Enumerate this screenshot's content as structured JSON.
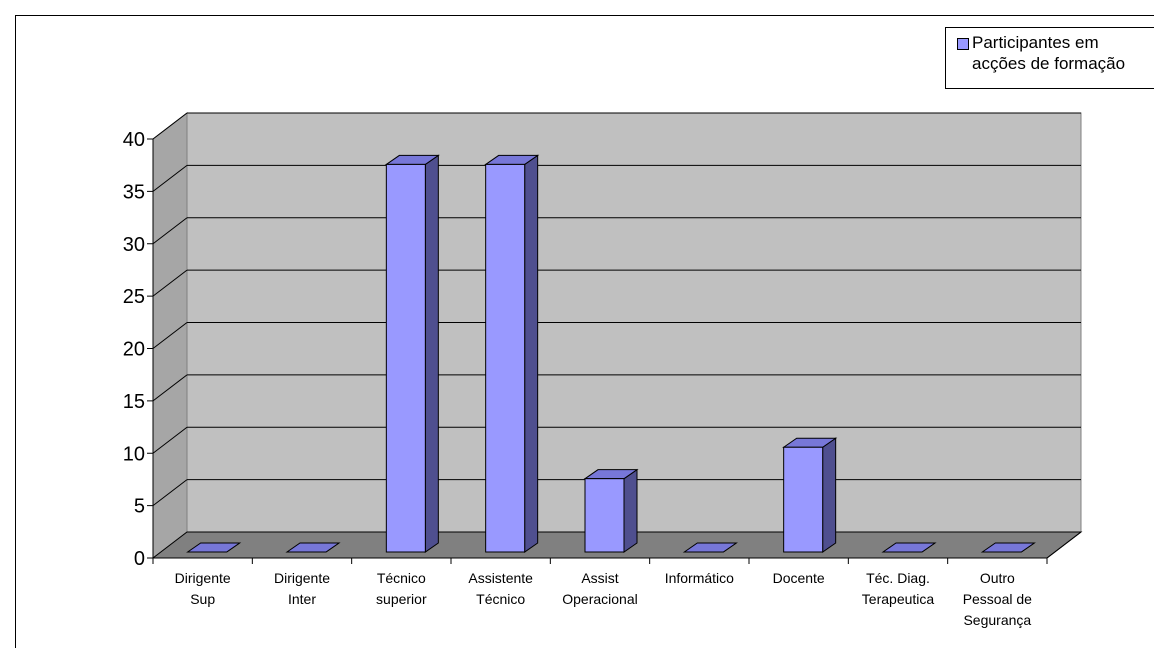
{
  "chart_data": {
    "type": "bar",
    "title": "",
    "xlabel": "",
    "ylabel": "",
    "ylim": [
      0,
      40
    ],
    "yticks": [
      0,
      5,
      10,
      15,
      20,
      25,
      30,
      35,
      40
    ],
    "grid": true,
    "legend_position": "top-right",
    "categories": [
      "Dirigente\nSup",
      "Dirigente\nInter",
      "Técnico\nsuperior",
      "Assistente\nTécnico",
      "Assist\nOperacional",
      "Informático",
      "Docente",
      "Téc. Diag.\nTerapeutica",
      "Outro\nPessoal de\nSegurança"
    ],
    "series": [
      {
        "name": "Participantes em\nacções de formação",
        "values": [
          0,
          0,
          37,
          37,
          7,
          0,
          10,
          0,
          0
        ],
        "color": "#9999ff"
      }
    ],
    "colors": {
      "wall": "#c0c0c0",
      "floor": "#808080",
      "bar_front": "#9999ff",
      "bar_top": "#7777d8",
      "bar_side": "#4f4f8f"
    }
  }
}
